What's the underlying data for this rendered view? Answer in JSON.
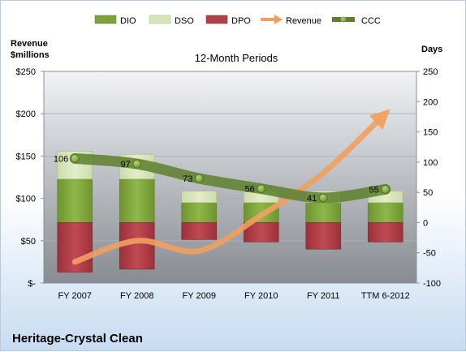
{
  "chart_data": {
    "type": "bar",
    "title": "12-Month Periods",
    "company": "Heritage-Crystal Clean",
    "left_axis": {
      "label_line1": "Revenue",
      "label_line2": "$millions",
      "min": 0,
      "max": 250,
      "step": 50,
      "ticks": [
        "$-",
        "$50",
        "$100",
        "$150",
        "$200",
        "$250"
      ]
    },
    "right_axis": {
      "label": "Days",
      "min": -100,
      "max": 250,
      "step": 50,
      "ticks": [
        "-100",
        "-50",
        "0",
        "50",
        "100",
        "150",
        "200",
        "250"
      ]
    },
    "categories": [
      "FY 2007",
      "FY 2008",
      "FY 2009",
      "FY 2010",
      "FY 2011",
      "TTM 6-2012"
    ],
    "legend_position": "top",
    "series": [
      {
        "name": "DIO",
        "kind": "stacked-bar",
        "axis": "right",
        "color": "#7fa33b",
        "values": [
          72,
          72,
          33,
          33,
          33,
          33
        ]
      },
      {
        "name": "DSO",
        "kind": "stacked-bar",
        "axis": "right",
        "color": "#d8e4b8",
        "values": [
          46,
          41,
          19,
          19,
          19,
          19
        ]
      },
      {
        "name": "DPO",
        "kind": "stacked-bar-negative",
        "axis": "right",
        "color": "#b0404a",
        "values": [
          -82,
          -77,
          -28,
          -32,
          -44,
          -32
        ]
      },
      {
        "name": "Revenue",
        "kind": "line-arrow",
        "axis": "left",
        "color": "#f0a060",
        "values": [
          25,
          50,
          38,
          80,
          130,
          200
        ]
      },
      {
        "name": "CCC",
        "kind": "line-markers",
        "axis": "right",
        "color": "#5e7f2c",
        "values": [
          106,
          97,
          73,
          56,
          41,
          55
        ]
      }
    ],
    "data_labels": [
      "106",
      "97",
      "73",
      "56",
      "41",
      "55"
    ]
  }
}
